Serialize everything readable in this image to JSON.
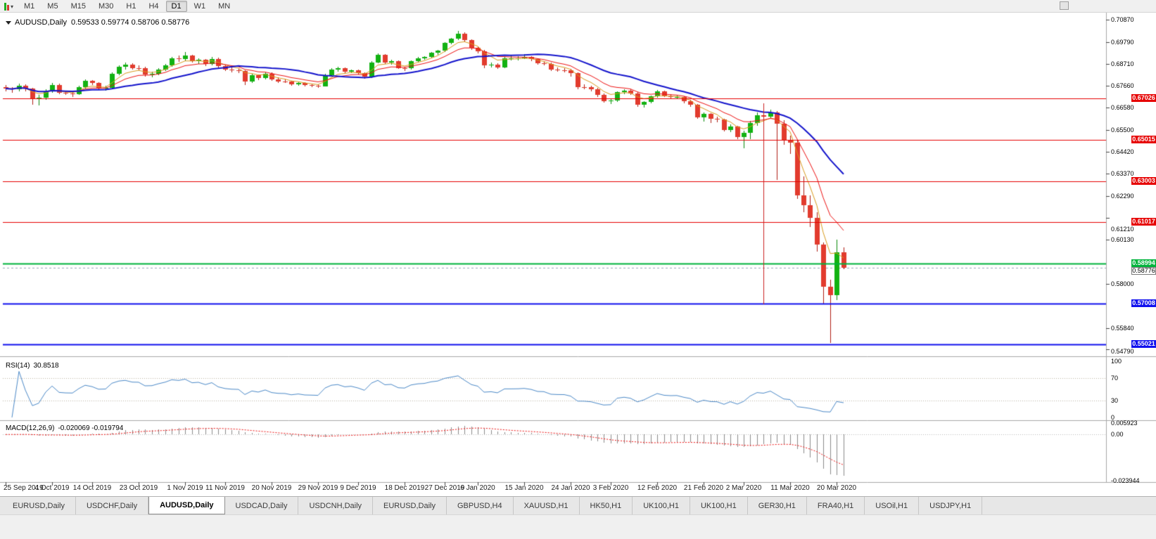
{
  "toolbar": {
    "timeframes": [
      "M1",
      "M5",
      "M15",
      "M30",
      "H1",
      "H4",
      "D1",
      "W1",
      "MN"
    ],
    "active_timeframe": "D1"
  },
  "chart": {
    "symbol_period": "AUDUSD,Daily",
    "ohlc": "0.59533 0.59774 0.58706 0.58776"
  },
  "rsi": {
    "label": "RSI(14)",
    "value": "30.8518",
    "scale": [
      "100",
      "70",
      "30",
      "0"
    ],
    "scale_values": [
      100,
      70,
      30,
      0
    ],
    "levels": [
      70,
      30
    ]
  },
  "macd": {
    "label": "MACD(12,26,9)",
    "value": "-0.020069 -0.019794",
    "scale": [
      "0.005923",
      "0.00",
      "-0.023944"
    ]
  },
  "tabs": [
    {
      "label": "EURUSD,Daily"
    },
    {
      "label": "USDCHF,Daily"
    },
    {
      "label": "AUDUSD,Daily",
      "active": true
    },
    {
      "label": "USDCAD,Daily"
    },
    {
      "label": "USDCNH,Daily"
    },
    {
      "label": "EURUSD,Daily"
    },
    {
      "label": "GBPUSD,H4"
    },
    {
      "label": "XAUUSD,H1"
    },
    {
      "label": "HK50,H1"
    },
    {
      "label": "UK100,H1"
    },
    {
      "label": "UK100,H1"
    },
    {
      "label": "GER30,H1"
    },
    {
      "label": "FRA40,H1"
    },
    {
      "label": "USOil,H1"
    },
    {
      "label": "USDJPY,H1"
    }
  ],
  "chart_data": {
    "type": "candlestick",
    "title": "AUDUSD,Daily",
    "x_axis_labels": [
      "25 Sep 2019",
      "4 Oct 2019",
      "14 Oct 2019",
      "23 Oct 2019",
      "1 Nov 2019",
      "11 Nov 2019",
      "20 Nov 2019",
      "29 Nov 2019",
      "9 Dec 2019",
      "18 Dec 2019",
      "27 Dec 2019",
      "6 Jan 2020",
      "15 Jan 2020",
      "24 Jan 2020",
      "3 Feb 2020",
      "12 Feb 2020",
      "21 Feb 2020",
      "2 Mar 2020",
      "11 Mar 2020",
      "20 Mar 2020"
    ],
    "x_axis_label_indices": [
      0,
      7,
      13,
      20,
      27,
      33,
      40,
      47,
      53,
      60,
      66,
      71,
      78,
      85,
      91,
      98,
      105,
      111,
      118,
      125
    ],
    "y_axis_ticks": [
      "0.70870",
      "0.69790",
      "0.68710",
      "0.67660",
      "0.66580",
      "0.65500",
      "0.64420",
      "0.63370",
      "0.62290",
      "0.61210",
      "0.60130",
      "0.58000",
      "0.55840",
      "0.54790"
    ],
    "price_axis_range": {
      "max": 0.7109,
      "min": 0.5452
    },
    "candles": [
      [
        0.676,
        0.6768,
        0.6738,
        0.6752
      ],
      [
        0.6752,
        0.676,
        0.6731,
        0.6748
      ],
      [
        0.6748,
        0.6775,
        0.674,
        0.6766
      ],
      [
        0.6766,
        0.6774,
        0.674,
        0.6751
      ],
      [
        0.6751,
        0.6756,
        0.6672,
        0.6702
      ],
      [
        0.6702,
        0.672,
        0.667,
        0.6707
      ],
      [
        0.6707,
        0.6748,
        0.6698,
        0.674
      ],
      [
        0.674,
        0.678,
        0.6733,
        0.677
      ],
      [
        0.677,
        0.6775,
        0.6724,
        0.6731
      ],
      [
        0.6731,
        0.6742,
        0.672,
        0.6727
      ],
      [
        0.6727,
        0.6736,
        0.671,
        0.6726
      ],
      [
        0.6726,
        0.6765,
        0.6722,
        0.6758
      ],
      [
        0.6758,
        0.6798,
        0.6752,
        0.679
      ],
      [
        0.679,
        0.6795,
        0.6768,
        0.6778
      ],
      [
        0.6778,
        0.6783,
        0.6745,
        0.6753
      ],
      [
        0.6753,
        0.6765,
        0.6741,
        0.6755
      ],
      [
        0.6755,
        0.683,
        0.6752,
        0.6823
      ],
      [
        0.6823,
        0.6865,
        0.6818,
        0.6857
      ],
      [
        0.6857,
        0.688,
        0.6845,
        0.6868
      ],
      [
        0.6868,
        0.6875,
        0.6846,
        0.6853
      ],
      [
        0.6853,
        0.6864,
        0.6841,
        0.6852
      ],
      [
        0.6852,
        0.6858,
        0.681,
        0.6821
      ],
      [
        0.6821,
        0.6835,
        0.6808,
        0.6823
      ],
      [
        0.6823,
        0.6852,
        0.6816,
        0.6845
      ],
      [
        0.6845,
        0.6872,
        0.6838,
        0.6866
      ],
      [
        0.6866,
        0.6908,
        0.686,
        0.69
      ],
      [
        0.69,
        0.6912,
        0.6882,
        0.6895
      ],
      [
        0.6895,
        0.693,
        0.6886,
        0.6913
      ],
      [
        0.6913,
        0.6918,
        0.6878,
        0.6886
      ],
      [
        0.6886,
        0.69,
        0.6874,
        0.6892
      ],
      [
        0.6892,
        0.6898,
        0.6862,
        0.6874
      ],
      [
        0.6874,
        0.6905,
        0.6866,
        0.6897
      ],
      [
        0.6897,
        0.6903,
        0.6853,
        0.6862
      ],
      [
        0.6862,
        0.6868,
        0.6838,
        0.6846
      ],
      [
        0.6846,
        0.6856,
        0.683,
        0.684
      ],
      [
        0.684,
        0.6848,
        0.6826,
        0.6838
      ],
      [
        0.6838,
        0.6842,
        0.677,
        0.6785
      ],
      [
        0.6785,
        0.6825,
        0.6778,
        0.6817
      ],
      [
        0.6817,
        0.6822,
        0.6795,
        0.6805
      ],
      [
        0.6805,
        0.6832,
        0.6798,
        0.6825
      ],
      [
        0.6825,
        0.683,
        0.679,
        0.6797
      ],
      [
        0.6797,
        0.6806,
        0.678,
        0.6788
      ],
      [
        0.6788,
        0.6796,
        0.6778,
        0.6786
      ],
      [
        0.6786,
        0.679,
        0.6765,
        0.6772
      ],
      [
        0.6772,
        0.6784,
        0.6766,
        0.6778
      ],
      [
        0.6778,
        0.6782,
        0.6762,
        0.6768
      ],
      [
        0.6768,
        0.6774,
        0.6758,
        0.6766
      ],
      [
        0.6766,
        0.6772,
        0.6756,
        0.6764
      ],
      [
        0.6764,
        0.6824,
        0.6762,
        0.6818
      ],
      [
        0.6818,
        0.685,
        0.6812,
        0.6845
      ],
      [
        0.6845,
        0.6858,
        0.6835,
        0.6852
      ],
      [
        0.6852,
        0.6856,
        0.6828,
        0.6835
      ],
      [
        0.6835,
        0.6846,
        0.6828,
        0.684
      ],
      [
        0.684,
        0.6844,
        0.682,
        0.6827
      ],
      [
        0.6827,
        0.6832,
        0.68,
        0.6809
      ],
      [
        0.6809,
        0.6885,
        0.6805,
        0.688
      ],
      [
        0.688,
        0.6924,
        0.6876,
        0.6918
      ],
      [
        0.6918,
        0.6922,
        0.6872,
        0.688
      ],
      [
        0.688,
        0.6892,
        0.687,
        0.6885
      ],
      [
        0.6885,
        0.689,
        0.6848,
        0.6853
      ],
      [
        0.6853,
        0.686,
        0.6838,
        0.685
      ],
      [
        0.685,
        0.689,
        0.6844,
        0.6885
      ],
      [
        0.6885,
        0.6906,
        0.688,
        0.69
      ],
      [
        0.69,
        0.691,
        0.6892,
        0.6905
      ],
      [
        0.6905,
        0.693,
        0.69,
        0.6926
      ],
      [
        0.6926,
        0.694,
        0.6918,
        0.6936
      ],
      [
        0.6936,
        0.698,
        0.693,
        0.6976
      ],
      [
        0.6976,
        0.7,
        0.697,
        0.6996
      ],
      [
        0.6996,
        0.7032,
        0.699,
        0.7021
      ],
      [
        0.7021,
        0.7026,
        0.698,
        0.6989
      ],
      [
        0.6989,
        0.6994,
        0.694,
        0.695
      ],
      [
        0.695,
        0.6958,
        0.6924,
        0.6935
      ],
      [
        0.6935,
        0.694,
        0.685,
        0.6865
      ],
      [
        0.6865,
        0.6878,
        0.6855,
        0.687
      ],
      [
        0.687,
        0.6875,
        0.6848,
        0.6856
      ],
      [
        0.6856,
        0.6906,
        0.685,
        0.69
      ],
      [
        0.69,
        0.6912,
        0.689,
        0.69
      ],
      [
        0.69,
        0.691,
        0.6888,
        0.6901
      ],
      [
        0.6901,
        0.692,
        0.6895,
        0.6905
      ],
      [
        0.6905,
        0.691,
        0.6885,
        0.6895
      ],
      [
        0.6895,
        0.69,
        0.6868,
        0.6875
      ],
      [
        0.6875,
        0.6884,
        0.6864,
        0.6873
      ],
      [
        0.6873,
        0.6878,
        0.6838,
        0.6846
      ],
      [
        0.6846,
        0.6856,
        0.6834,
        0.6843
      ],
      [
        0.6843,
        0.685,
        0.683,
        0.6842
      ],
      [
        0.6842,
        0.6848,
        0.6812,
        0.6827
      ],
      [
        0.6827,
        0.6832,
        0.675,
        0.676
      ],
      [
        0.676,
        0.6772,
        0.6748,
        0.6759
      ],
      [
        0.6759,
        0.6766,
        0.6738,
        0.675
      ],
      [
        0.675,
        0.6756,
        0.671,
        0.6722
      ],
      [
        0.6722,
        0.6728,
        0.6682,
        0.6691
      ],
      [
        0.6691,
        0.6704,
        0.6678,
        0.6693
      ],
      [
        0.6693,
        0.674,
        0.6688,
        0.6735
      ],
      [
        0.6735,
        0.675,
        0.6726,
        0.6742
      ],
      [
        0.6742,
        0.6748,
        0.672,
        0.6729
      ],
      [
        0.6729,
        0.6734,
        0.6662,
        0.6672
      ],
      [
        0.6672,
        0.6692,
        0.666,
        0.6686
      ],
      [
        0.6686,
        0.6718,
        0.668,
        0.6713
      ],
      [
        0.6713,
        0.6744,
        0.6708,
        0.6738
      ],
      [
        0.6738,
        0.6742,
        0.671,
        0.6716
      ],
      [
        0.6716,
        0.6724,
        0.67,
        0.6711
      ],
      [
        0.6711,
        0.6718,
        0.67,
        0.6712
      ],
      [
        0.6712,
        0.6716,
        0.668,
        0.669
      ],
      [
        0.669,
        0.6696,
        0.6662,
        0.6674
      ],
      [
        0.6674,
        0.6678,
        0.6605,
        0.6613
      ],
      [
        0.6613,
        0.6636,
        0.6592,
        0.6628
      ],
      [
        0.6628,
        0.6632,
        0.6585,
        0.6604
      ],
      [
        0.6604,
        0.6614,
        0.6586,
        0.6601
      ],
      [
        0.6601,
        0.6606,
        0.6542,
        0.6549
      ],
      [
        0.6549,
        0.6578,
        0.654,
        0.6568
      ],
      [
        0.6568,
        0.6572,
        0.6505,
        0.6515
      ],
      [
        0.6515,
        0.6548,
        0.6462,
        0.6537
      ],
      [
        0.6537,
        0.6596,
        0.6506,
        0.6585
      ],
      [
        0.6585,
        0.6634,
        0.6572,
        0.6623
      ],
      [
        0.6623,
        0.664,
        0.66,
        0.6614
      ],
      [
        0.6614,
        0.6648,
        0.6606,
        0.6637
      ],
      [
        0.6637,
        0.6642,
        0.6305,
        0.6582
      ],
      [
        0.6582,
        0.6598,
        0.6478,
        0.6502
      ],
      [
        0.6502,
        0.6524,
        0.6432,
        0.6489
      ],
      [
        0.6489,
        0.65,
        0.6215,
        0.6231
      ],
      [
        0.6231,
        0.6322,
        0.615,
        0.6184
      ],
      [
        0.6184,
        0.623,
        0.6076,
        0.6121
      ],
      [
        0.6121,
        0.6148,
        0.5958,
        0.5992
      ],
      [
        0.5992,
        0.6002,
        0.5702,
        0.5786
      ],
      [
        0.5786,
        0.5818,
        0.551,
        0.5742
      ],
      [
        0.5742,
        0.6015,
        0.572,
        0.5953
      ],
      [
        0.59533,
        0.59774,
        0.58706,
        0.58776
      ]
    ],
    "moving_averages": [
      {
        "name": "ma-fast",
        "method": "ema",
        "period": 5,
        "color": "#d99a1b",
        "width": 1
      },
      {
        "name": "ma-mid",
        "method": "ema",
        "period": 10,
        "color": "#ee1111",
        "width": 1
      },
      {
        "name": "ma-slow",
        "method": "sma",
        "period": 20,
        "color": "#1414cc",
        "width": 2
      }
    ],
    "horizontal_lines": [
      {
        "price": 0.67026,
        "label": "0.67026",
        "color": "#e60000",
        "width": 1
      },
      {
        "price": 0.65015,
        "label": "0.65015",
        "color": "#e60000",
        "width": 1
      },
      {
        "price": 0.63003,
        "label": "0.63003",
        "color": "#e60000",
        "width": 1
      },
      {
        "price": 0.61017,
        "label": "0.61017",
        "color": "#e60000",
        "width": 1
      },
      {
        "price": 0.58994,
        "label": "0.58994",
        "color": "#00b43c",
        "width": 2
      },
      {
        "price": 0.57008,
        "label": "0.57008",
        "color": "#1111ee",
        "width": 2
      },
      {
        "price": 0.55021,
        "label": "0.55021",
        "color": "#1111ee",
        "width": 2
      }
    ],
    "vertical_segment": {
      "index": 114,
      "price_from": 0.668,
      "price_to": 0.57,
      "color": "#cc2222"
    },
    "current_price": {
      "value": 0.58776,
      "label": "0.58776",
      "line_color": "#98a8b8"
    },
    "candle_colors": {
      "up": "#12b212",
      "up_wick": "#0a8a0a",
      "down": "#e23b2e",
      "down_wick": "#b01e14"
    },
    "rsi_period": 14,
    "rsi_color": "#4b89c8",
    "rsi_level_color": "#bdb2a3",
    "macd_params": {
      "fast": 12,
      "slow": 26,
      "signal": 9
    },
    "macd_colors": {
      "histogram": "#8c8c8c",
      "signal": "#ee1111"
    },
    "macd_range": {
      "max": 0.005923,
      "min": -0.023944
    }
  }
}
